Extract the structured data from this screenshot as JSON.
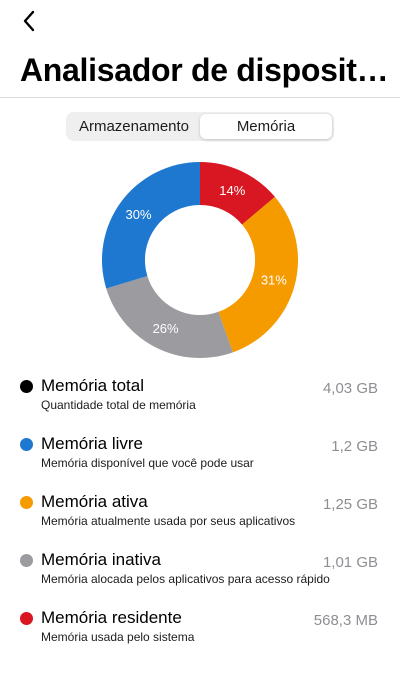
{
  "header": {
    "title": "Analisador de disposit…",
    "back_icon": "chevron-left-icon"
  },
  "tabs": [
    {
      "label": "Armazenamento",
      "active": false
    },
    {
      "label": "Memória",
      "active": true
    }
  ],
  "chart_data": {
    "type": "pie",
    "donut": true,
    "slices": [
      {
        "label": "14%",
        "value": 14,
        "color": "#d81722"
      },
      {
        "label": "31%",
        "value": 31,
        "color": "#f59b00"
      },
      {
        "label": "26%",
        "value": 26,
        "color": "#9b9ba0"
      },
      {
        "label": "30%",
        "value": 30,
        "color": "#1f78cf"
      }
    ]
  },
  "memory": {
    "items": [
      {
        "title": "Memória total",
        "subtitle": "Quantidade total de memória",
        "value": "4,03 GB",
        "color": "#000000"
      },
      {
        "title": "Memória livre",
        "subtitle": "Memória disponível que você pode usar",
        "value": "1,2 GB",
        "color": "#1f78cf"
      },
      {
        "title": "Memória ativa",
        "subtitle": "Memória atualmente usada por seus aplicativos",
        "value": "1,25 GB",
        "color": "#f59b00"
      },
      {
        "title": "Memória inativa",
        "subtitle": "Memória alocada pelos aplicativos para acesso rápido",
        "value": "1,01 GB",
        "color": "#9b9ba0"
      },
      {
        "title": "Memória residente",
        "subtitle": "Memória usada pelo sistema",
        "value": "568,3 MB",
        "color": "#d81722"
      }
    ]
  }
}
